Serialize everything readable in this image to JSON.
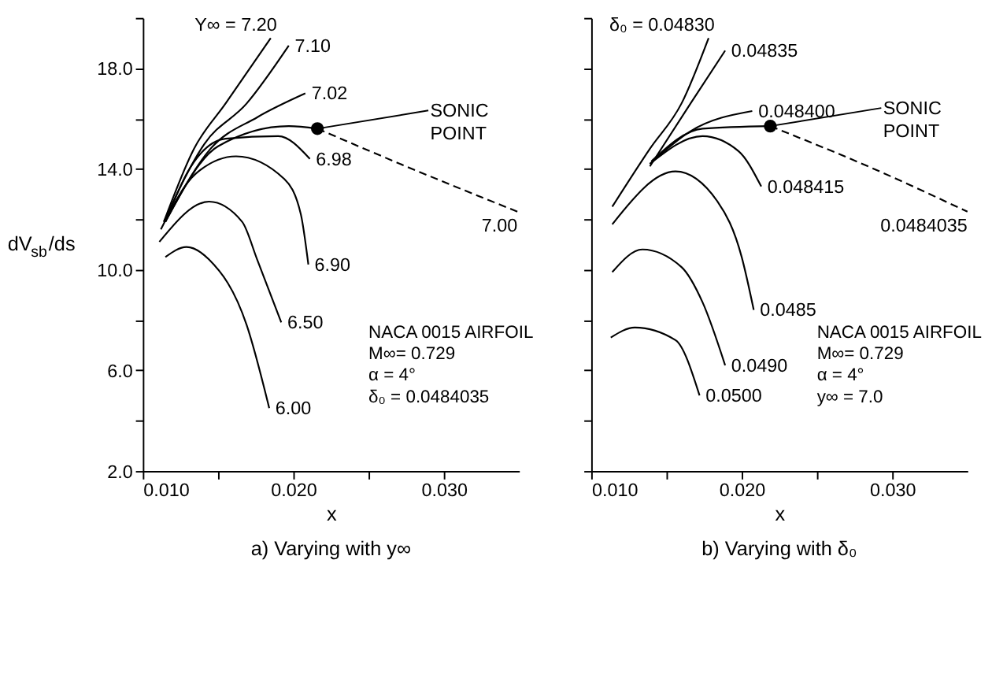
{
  "chart_data": [
    {
      "type": "line",
      "title": "a) Varying with y∞",
      "xlabel": "x",
      "ylabel": "dV$_{sb}$/ds",
      "xlim": [
        0.01,
        0.035
      ],
      "ylim": [
        2,
        20
      ],
      "xticks": [
        {
          "value": 0.01,
          "label": "0.010"
        },
        {
          "value": 0.015,
          "label": null
        },
        {
          "value": 0.02,
          "label": "0.020"
        },
        {
          "value": 0.025,
          "label": null
        },
        {
          "value": 0.03,
          "label": "0.030"
        }
      ],
      "yticks": [
        {
          "value": 2,
          "label": "2.0"
        },
        {
          "value": 4,
          "label": null
        },
        {
          "value": 6,
          "label": "6.0"
        },
        {
          "value": 8,
          "label": null
        },
        {
          "value": 10,
          "label": "10.0"
        },
        {
          "value": 12,
          "label": null
        },
        {
          "value": 14,
          "label": "14.0"
        },
        {
          "value": 16,
          "label": null
        },
        {
          "value": 18,
          "label": "18.0"
        },
        {
          "value": 20,
          "label": null
        }
      ],
      "series": [
        {
          "name": "Y∞ = 7.20",
          "color": "#000000",
          "x": [
            0.0114,
            0.0134,
            0.0155,
            0.0185
          ],
          "values": [
            11.9,
            14.8,
            16.6,
            19.2
          ]
        },
        {
          "name": "7.10",
          "color": "#000000",
          "x": [
            0.0114,
            0.0141,
            0.0169,
            0.0197
          ],
          "values": [
            11.9,
            15.0,
            16.6,
            18.9
          ]
        },
        {
          "name": "7.02",
          "color": "#000000",
          "x": [
            0.0115,
            0.0145,
            0.0176,
            0.0208
          ],
          "values": [
            11.9,
            14.8,
            16.05,
            17.0
          ]
        },
        {
          "color": "#000000",
          "x": [
            0.0115,
            0.015,
            0.0197,
            0.0216
          ],
          "values": [
            11.9,
            14.9,
            15.7,
            15.6
          ]
        },
        {
          "name": "7.00",
          "color": "#000000",
          "line_style": "dashed",
          "x": [
            0.0216,
            0.0275,
            0.0349
          ],
          "values": [
            15.6,
            14.1,
            12.3
          ]
        },
        {
          "name": "6.98",
          "color": "#000000",
          "x": [
            0.0115,
            0.013,
            0.0155,
            0.019,
            0.0211
          ],
          "values": [
            11.9,
            13.9,
            15.2,
            15.3,
            14.4
          ]
        },
        {
          "name": "6.90",
          "color": "#000000",
          "x": [
            0.0112,
            0.0135,
            0.0162,
            0.0194,
            0.0205,
            0.021
          ],
          "values": [
            11.6,
            13.8,
            14.5,
            13.6,
            12.2,
            10.2
          ]
        },
        {
          "name": "6.50",
          "color": "#000000",
          "x": [
            0.0111,
            0.0144,
            0.0166,
            0.0176,
            0.0192
          ],
          "values": [
            11.1,
            12.7,
            11.9,
            10.4,
            7.9
          ]
        },
        {
          "name": "6.00",
          "color": "#000000",
          "x": [
            0.0115,
            0.0129,
            0.0144,
            0.0169,
            0.0184
          ],
          "values": [
            10.5,
            10.9,
            10.4,
            7.8,
            4.5
          ]
        },
        {
          "type": "scatter",
          "marker": "circle",
          "color": "#000000",
          "x": [
            0.0216
          ],
          "values": [
            15.6
          ]
        }
      ],
      "annotations": [
        {
          "text": "SONIC POINT",
          "x": 0.0216,
          "y": 15.6
        },
        "NACA 0015 AIRFOIL",
        "M∞= 0.729",
        "α = 4°",
        "δ₀ = 0.0484035"
      ]
    },
    {
      "type": "line",
      "title": "b) Varying with δ₀",
      "xlabel": "x",
      "tick_labels": "x",
      "xlim": [
        0.01,
        0.035
      ],
      "ylim": [
        2,
        20
      ],
      "xticks": [
        {
          "value": 0.01,
          "label": "0.010"
        },
        {
          "value": 0.015,
          "label": null
        },
        {
          "value": 0.02,
          "label": "0.020"
        },
        {
          "value": 0.025,
          "label": null
        },
        {
          "value": 0.03,
          "label": "0.030"
        }
      ],
      "yticks": [
        {
          "value": 2,
          "label": null
        },
        {
          "value": 4,
          "label": null
        },
        {
          "value": 6,
          "label": null
        },
        {
          "value": 8,
          "label": null
        },
        {
          "value": 10,
          "label": null
        },
        {
          "value": 12,
          "label": null
        },
        {
          "value": 14,
          "label": null
        },
        {
          "value": 16,
          "label": null
        },
        {
          "value": 18,
          "label": null
        },
        {
          "value": 20,
          "label": null
        }
      ],
      "series": [
        {
          "name": "δ₀ = 0.04830",
          "color": "#000000",
          "x": [
            0.0114,
            0.0139,
            0.016,
            0.0178
          ],
          "values": [
            12.5,
            14.8,
            16.6,
            19.2
          ]
        },
        {
          "name": "0.04835",
          "color": "#000000",
          "x": [
            0.0139,
            0.0166,
            0.0189
          ],
          "values": [
            14.1,
            16.6,
            18.7
          ]
        },
        {
          "name": "0.048400",
          "color": "#000000",
          "x": [
            0.0139,
            0.0166,
            0.0207
          ],
          "values": [
            14.2,
            15.5,
            16.3
          ]
        },
        {
          "color": "#000000",
          "x": [
            0.014,
            0.0174,
            0.0219
          ],
          "values": [
            14.3,
            15.6,
            15.7
          ]
        },
        {
          "name": "0.0484035",
          "color": "#000000",
          "line_style": "dashed",
          "x": [
            0.0219,
            0.0286,
            0.035
          ],
          "values": [
            15.7,
            14.05,
            12.3
          ]
        },
        {
          "name": "0.048415",
          "color": "#000000",
          "x": [
            0.0139,
            0.0174,
            0.0198,
            0.0213
          ],
          "values": [
            14.2,
            15.3,
            14.7,
            13.3
          ]
        },
        {
          "name": "0.0485",
          "color": "#000000",
          "x": [
            0.0114,
            0.0156,
            0.0184,
            0.02,
            0.0208
          ],
          "values": [
            11.8,
            13.9,
            12.7,
            10.5,
            8.4
          ]
        },
        {
          "name": "0.0490",
          "color": "#000000",
          "x": [
            0.0114,
            0.0134,
            0.016,
            0.0174,
            0.0189
          ],
          "values": [
            9.9,
            10.8,
            10.1,
            8.7,
            6.2
          ]
        },
        {
          "name": "0.0500",
          "color": "#000000",
          "x": [
            0.0113,
            0.0129,
            0.0156,
            0.0172
          ],
          "values": [
            7.3,
            7.7,
            7.2,
            5.0
          ]
        },
        {
          "type": "scatter",
          "marker": "circle",
          "color": "#000000",
          "x": [
            0.0219
          ],
          "values": [
            15.7
          ]
        }
      ],
      "annotations": [
        {
          "text": "SONIC POINT",
          "x": 0.0219,
          "y": 15.7
        },
        "NACA 0015 AIRFOIL",
        "M∞= 0.729",
        "α = 4°",
        "y∞ = 7.0"
      ]
    }
  ]
}
